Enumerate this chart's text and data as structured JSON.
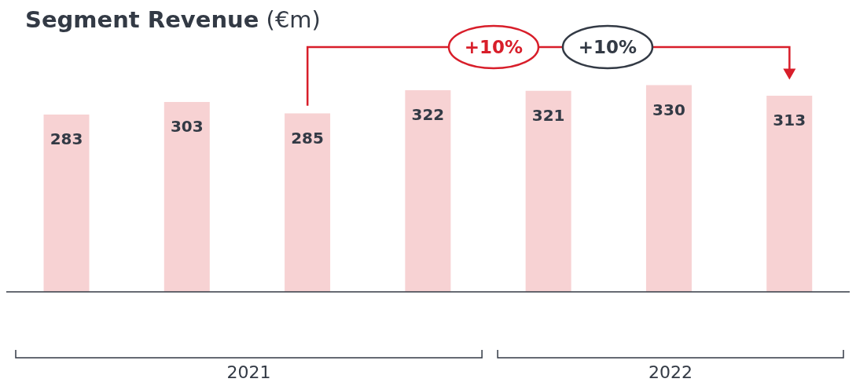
{
  "chart_data": {
    "type": "bar",
    "title": "Segment Revenue (€m)",
    "categories": [
      null,
      null,
      null,
      null,
      null,
      null,
      null
    ],
    "values": [
      283,
      303,
      285,
      322,
      321,
      330,
      313
    ],
    "color": "#f7d2d3",
    "data_labels": true,
    "grid": false,
    "annotations": [
      "+10%",
      "+10%",
      "2021",
      "2022"
    ]
  }
}
